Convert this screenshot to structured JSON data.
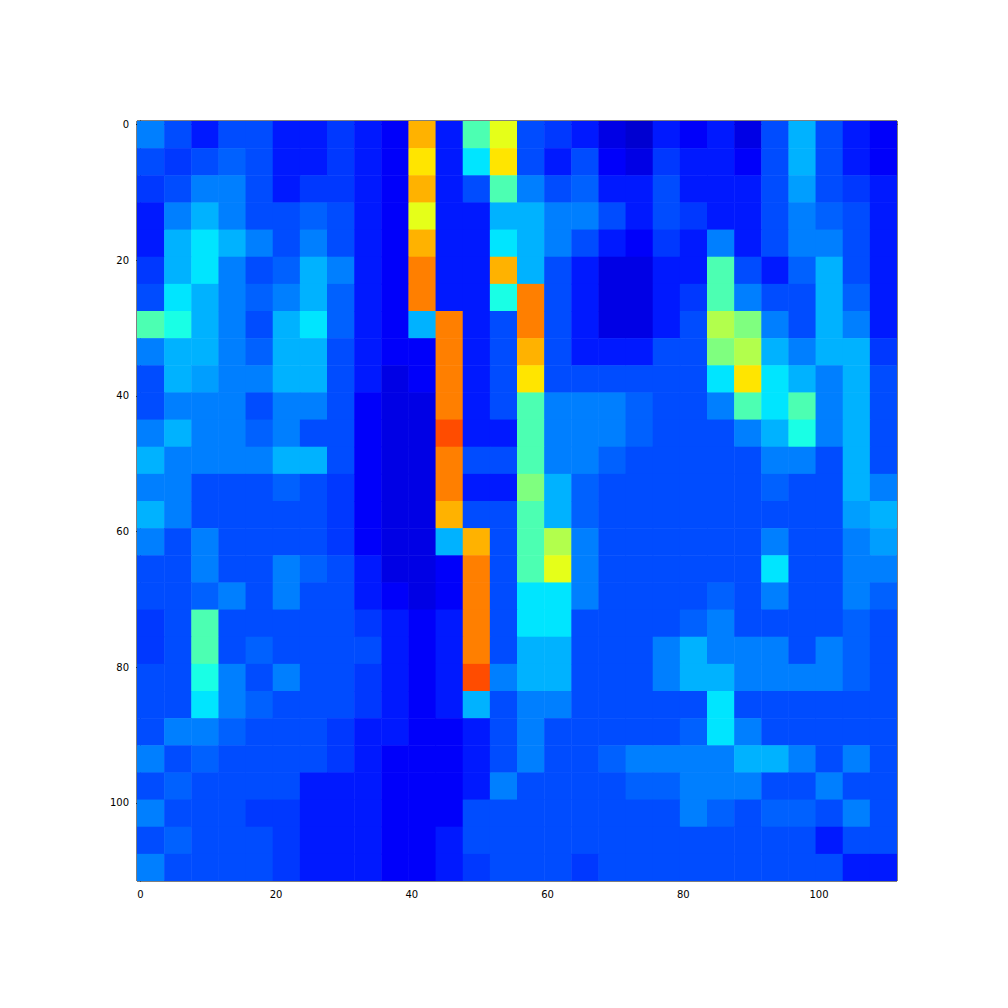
{
  "chart_data": {
    "type": "heatmap",
    "xlim": [
      -0.5,
      111.5
    ],
    "ylim": [
      111.5,
      -0.5
    ],
    "xticks": [
      0,
      20,
      40,
      60,
      80,
      100
    ],
    "yticks": [
      0,
      20,
      40,
      60,
      80,
      100
    ],
    "grid": false,
    "value_range": [
      0,
      1
    ],
    "x": [
      1.5,
      5.5,
      9.5,
      13.5,
      17.5,
      21.5,
      25.5,
      29.5,
      33.5,
      37.5,
      41.5,
      45.5,
      49.5,
      53.5,
      57.5,
      61.5,
      65.5,
      69.5,
      73.5,
      77.5,
      81.5,
      85.5,
      89.5,
      93.5,
      97.5,
      101.5,
      105.5,
      109.5
    ],
    "y": [
      1.5,
      5.5,
      9.5,
      13.5,
      17.5,
      21.5,
      25.5,
      29.5,
      33.5,
      37.5,
      41.5,
      45.5,
      49.5,
      53.5,
      57.5,
      61.5,
      65.5,
      69.5,
      73.5,
      77.5,
      81.5,
      85.5,
      89.5,
      93.5,
      97.5,
      101.5,
      105.5,
      109.5
    ],
    "cells": [
      [
        0.25,
        0.2,
        0.15,
        0.2,
        0.2,
        0.15,
        0.15,
        0.18,
        0.15,
        0.12,
        0.7,
        0.15,
        0.45,
        0.6,
        0.2,
        0.18,
        0.15,
        0.1,
        0.08,
        0.15,
        0.12,
        0.15,
        0.1,
        0.2,
        0.3,
        0.2,
        0.15,
        0.12
      ],
      [
        0.2,
        0.18,
        0.2,
        0.22,
        0.2,
        0.15,
        0.15,
        0.18,
        0.15,
        0.12,
        0.65,
        0.15,
        0.35,
        0.65,
        0.2,
        0.15,
        0.2,
        0.12,
        0.1,
        0.18,
        0.15,
        0.15,
        0.12,
        0.2,
        0.3,
        0.2,
        0.15,
        0.12
      ],
      [
        0.18,
        0.2,
        0.25,
        0.25,
        0.2,
        0.15,
        0.18,
        0.18,
        0.15,
        0.12,
        0.7,
        0.15,
        0.2,
        0.45,
        0.25,
        0.2,
        0.22,
        0.15,
        0.15,
        0.2,
        0.15,
        0.15,
        0.15,
        0.2,
        0.28,
        0.2,
        0.18,
        0.15
      ],
      [
        0.15,
        0.25,
        0.3,
        0.25,
        0.2,
        0.2,
        0.22,
        0.2,
        0.15,
        0.12,
        0.6,
        0.15,
        0.15,
        0.3,
        0.3,
        0.25,
        0.25,
        0.2,
        0.15,
        0.2,
        0.18,
        0.15,
        0.15,
        0.2,
        0.25,
        0.22,
        0.2,
        0.15
      ],
      [
        0.15,
        0.3,
        0.35,
        0.3,
        0.25,
        0.2,
        0.25,
        0.2,
        0.15,
        0.12,
        0.7,
        0.15,
        0.15,
        0.35,
        0.3,
        0.25,
        0.2,
        0.15,
        0.12,
        0.18,
        0.15,
        0.25,
        0.15,
        0.2,
        0.25,
        0.25,
        0.2,
        0.15
      ],
      [
        0.18,
        0.3,
        0.35,
        0.25,
        0.2,
        0.22,
        0.3,
        0.25,
        0.15,
        0.12,
        0.75,
        0.15,
        0.15,
        0.7,
        0.3,
        0.2,
        0.15,
        0.1,
        0.1,
        0.15,
        0.15,
        0.45,
        0.2,
        0.15,
        0.22,
        0.3,
        0.2,
        0.15
      ],
      [
        0.2,
        0.35,
        0.3,
        0.25,
        0.22,
        0.25,
        0.3,
        0.22,
        0.15,
        0.12,
        0.75,
        0.15,
        0.15,
        0.4,
        0.75,
        0.2,
        0.15,
        0.1,
        0.1,
        0.15,
        0.18,
        0.45,
        0.25,
        0.2,
        0.2,
        0.3,
        0.22,
        0.15
      ],
      [
        0.45,
        0.4,
        0.3,
        0.25,
        0.2,
        0.3,
        0.35,
        0.22,
        0.15,
        0.12,
        0.3,
        0.75,
        0.15,
        0.2,
        0.75,
        0.2,
        0.15,
        0.1,
        0.1,
        0.15,
        0.2,
        0.55,
        0.5,
        0.25,
        0.2,
        0.3,
        0.25,
        0.15
      ],
      [
        0.25,
        0.3,
        0.3,
        0.25,
        0.22,
        0.3,
        0.3,
        0.2,
        0.15,
        0.12,
        0.12,
        0.75,
        0.15,
        0.2,
        0.7,
        0.2,
        0.15,
        0.15,
        0.15,
        0.2,
        0.2,
        0.5,
        0.55,
        0.3,
        0.25,
        0.3,
        0.3,
        0.18
      ],
      [
        0.2,
        0.3,
        0.28,
        0.25,
        0.25,
        0.3,
        0.3,
        0.2,
        0.15,
        0.1,
        0.12,
        0.75,
        0.15,
        0.2,
        0.65,
        0.2,
        0.2,
        0.2,
        0.2,
        0.2,
        0.2,
        0.35,
        0.65,
        0.35,
        0.3,
        0.25,
        0.3,
        0.2
      ],
      [
        0.2,
        0.25,
        0.25,
        0.25,
        0.2,
        0.25,
        0.25,
        0.2,
        0.12,
        0.1,
        0.1,
        0.75,
        0.15,
        0.2,
        0.45,
        0.25,
        0.25,
        0.25,
        0.22,
        0.2,
        0.2,
        0.25,
        0.45,
        0.35,
        0.45,
        0.25,
        0.3,
        0.2
      ],
      [
        0.25,
        0.3,
        0.25,
        0.25,
        0.22,
        0.25,
        0.2,
        0.2,
        0.12,
        0.1,
        0.1,
        0.8,
        0.15,
        0.15,
        0.45,
        0.25,
        0.25,
        0.25,
        0.22,
        0.2,
        0.2,
        0.2,
        0.25,
        0.3,
        0.4,
        0.25,
        0.3,
        0.2
      ],
      [
        0.3,
        0.25,
        0.25,
        0.25,
        0.25,
        0.3,
        0.3,
        0.2,
        0.12,
        0.1,
        0.1,
        0.75,
        0.2,
        0.2,
        0.45,
        0.25,
        0.25,
        0.22,
        0.2,
        0.2,
        0.2,
        0.2,
        0.2,
        0.25,
        0.25,
        0.2,
        0.3,
        0.2
      ],
      [
        0.25,
        0.25,
        0.2,
        0.2,
        0.2,
        0.22,
        0.2,
        0.18,
        0.12,
        0.1,
        0.1,
        0.75,
        0.15,
        0.15,
        0.5,
        0.3,
        0.22,
        0.2,
        0.2,
        0.2,
        0.2,
        0.2,
        0.2,
        0.22,
        0.2,
        0.2,
        0.3,
        0.25
      ],
      [
        0.3,
        0.25,
        0.2,
        0.2,
        0.2,
        0.2,
        0.2,
        0.18,
        0.12,
        0.1,
        0.1,
        0.7,
        0.2,
        0.2,
        0.45,
        0.3,
        0.22,
        0.2,
        0.2,
        0.2,
        0.2,
        0.2,
        0.2,
        0.2,
        0.2,
        0.2,
        0.28,
        0.3
      ],
      [
        0.25,
        0.2,
        0.25,
        0.2,
        0.2,
        0.2,
        0.2,
        0.18,
        0.12,
        0.1,
        0.1,
        0.3,
        0.7,
        0.2,
        0.45,
        0.55,
        0.25,
        0.2,
        0.2,
        0.2,
        0.2,
        0.2,
        0.2,
        0.25,
        0.2,
        0.2,
        0.25,
        0.28
      ],
      [
        0.2,
        0.2,
        0.25,
        0.2,
        0.2,
        0.25,
        0.22,
        0.2,
        0.15,
        0.1,
        0.1,
        0.12,
        0.75,
        0.2,
        0.45,
        0.6,
        0.25,
        0.2,
        0.2,
        0.2,
        0.2,
        0.2,
        0.2,
        0.35,
        0.2,
        0.2,
        0.25,
        0.25
      ],
      [
        0.2,
        0.2,
        0.22,
        0.25,
        0.2,
        0.25,
        0.2,
        0.2,
        0.15,
        0.12,
        0.1,
        0.12,
        0.75,
        0.2,
        0.35,
        0.35,
        0.25,
        0.2,
        0.2,
        0.2,
        0.2,
        0.22,
        0.2,
        0.25,
        0.2,
        0.2,
        0.25,
        0.22
      ],
      [
        0.18,
        0.2,
        0.45,
        0.2,
        0.2,
        0.2,
        0.2,
        0.2,
        0.18,
        0.15,
        0.12,
        0.15,
        0.75,
        0.2,
        0.35,
        0.35,
        0.2,
        0.2,
        0.2,
        0.2,
        0.22,
        0.25,
        0.2,
        0.2,
        0.2,
        0.2,
        0.22,
        0.2
      ],
      [
        0.18,
        0.2,
        0.45,
        0.2,
        0.22,
        0.2,
        0.2,
        0.2,
        0.2,
        0.15,
        0.12,
        0.15,
        0.75,
        0.2,
        0.3,
        0.3,
        0.2,
        0.2,
        0.2,
        0.25,
        0.3,
        0.25,
        0.25,
        0.25,
        0.2,
        0.25,
        0.22,
        0.2
      ],
      [
        0.2,
        0.2,
        0.4,
        0.25,
        0.2,
        0.25,
        0.2,
        0.2,
        0.18,
        0.15,
        0.12,
        0.15,
        0.8,
        0.25,
        0.3,
        0.3,
        0.2,
        0.2,
        0.2,
        0.25,
        0.3,
        0.3,
        0.25,
        0.25,
        0.25,
        0.25,
        0.22,
        0.2
      ],
      [
        0.2,
        0.2,
        0.35,
        0.25,
        0.22,
        0.2,
        0.2,
        0.2,
        0.18,
        0.15,
        0.12,
        0.15,
        0.3,
        0.2,
        0.25,
        0.25,
        0.2,
        0.2,
        0.2,
        0.2,
        0.2,
        0.35,
        0.2,
        0.2,
        0.2,
        0.2,
        0.2,
        0.2
      ],
      [
        0.2,
        0.25,
        0.25,
        0.22,
        0.2,
        0.2,
        0.2,
        0.18,
        0.15,
        0.15,
        0.12,
        0.12,
        0.15,
        0.2,
        0.25,
        0.2,
        0.2,
        0.2,
        0.2,
        0.2,
        0.22,
        0.35,
        0.25,
        0.2,
        0.2,
        0.2,
        0.2,
        0.2
      ],
      [
        0.25,
        0.2,
        0.22,
        0.2,
        0.2,
        0.2,
        0.2,
        0.18,
        0.15,
        0.12,
        0.12,
        0.12,
        0.15,
        0.2,
        0.25,
        0.2,
        0.2,
        0.22,
        0.25,
        0.25,
        0.25,
        0.25,
        0.3,
        0.3,
        0.25,
        0.2,
        0.25,
        0.2
      ],
      [
        0.2,
        0.22,
        0.2,
        0.2,
        0.2,
        0.2,
        0.15,
        0.15,
        0.15,
        0.12,
        0.12,
        0.12,
        0.15,
        0.25,
        0.2,
        0.2,
        0.2,
        0.2,
        0.22,
        0.22,
        0.25,
        0.25,
        0.25,
        0.2,
        0.2,
        0.25,
        0.2,
        0.2
      ],
      [
        0.25,
        0.2,
        0.2,
        0.2,
        0.18,
        0.18,
        0.15,
        0.15,
        0.15,
        0.12,
        0.12,
        0.12,
        0.2,
        0.2,
        0.2,
        0.2,
        0.2,
        0.2,
        0.2,
        0.2,
        0.25,
        0.22,
        0.2,
        0.22,
        0.22,
        0.2,
        0.25,
        0.2
      ],
      [
        0.2,
        0.22,
        0.2,
        0.2,
        0.2,
        0.18,
        0.15,
        0.15,
        0.15,
        0.12,
        0.12,
        0.15,
        0.2,
        0.2,
        0.2,
        0.2,
        0.2,
        0.2,
        0.2,
        0.2,
        0.2,
        0.2,
        0.2,
        0.2,
        0.2,
        0.15,
        0.2,
        0.2
      ],
      [
        0.25,
        0.2,
        0.2,
        0.2,
        0.2,
        0.18,
        0.15,
        0.15,
        0.15,
        0.12,
        0.12,
        0.15,
        0.18,
        0.2,
        0.2,
        0.2,
        0.18,
        0.2,
        0.2,
        0.2,
        0.2,
        0.2,
        0.2,
        0.2,
        0.2,
        0.2,
        0.15,
        0.15
      ]
    ]
  }
}
